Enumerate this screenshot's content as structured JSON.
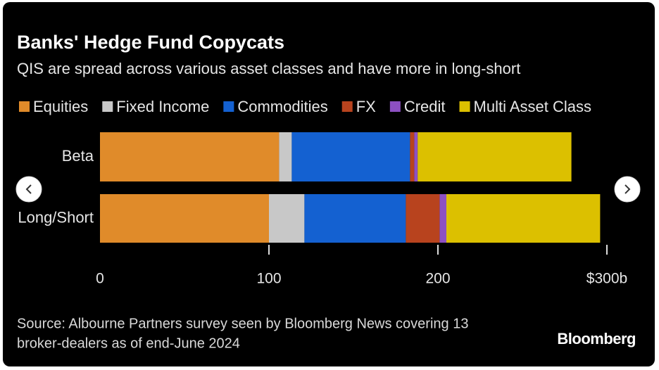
{
  "chart_data": {
    "type": "bar",
    "orientation": "horizontal",
    "stacked": true,
    "title": "Banks' Hedge Fund Copycats",
    "subtitle": "QIS are spread across various asset classes and have more in long-short",
    "categories": [
      "Beta",
      "Long/Short"
    ],
    "series": [
      {
        "name": "Equities",
        "color": "#e08b2a",
        "values": [
          106,
          100
        ]
      },
      {
        "name": "Fixed Income",
        "color": "#c8c8c8",
        "values": [
          7.5,
          21
        ]
      },
      {
        "name": "Commodities",
        "color": "#1461d1",
        "values": [
          70,
          60
        ]
      },
      {
        "name": "FX",
        "color": "#b8431e",
        "values": [
          2.5,
          20
        ]
      },
      {
        "name": "Credit",
        "color": "#8d50c2",
        "values": [
          2,
          4
        ]
      },
      {
        "name": "Multi Asset Class",
        "color": "#dcc000",
        "values": [
          91,
          91
        ]
      }
    ],
    "xlim": [
      0,
      300
    ],
    "xticks": [
      0,
      100,
      200,
      {
        "value": 300,
        "label": "$300b"
      }
    ],
    "source": [
      "Source: Albourne Partners survey seen by Bloomberg News covering 13",
      "broker-dealers as of end-June 2024"
    ],
    "brand": "Bloomberg"
  }
}
